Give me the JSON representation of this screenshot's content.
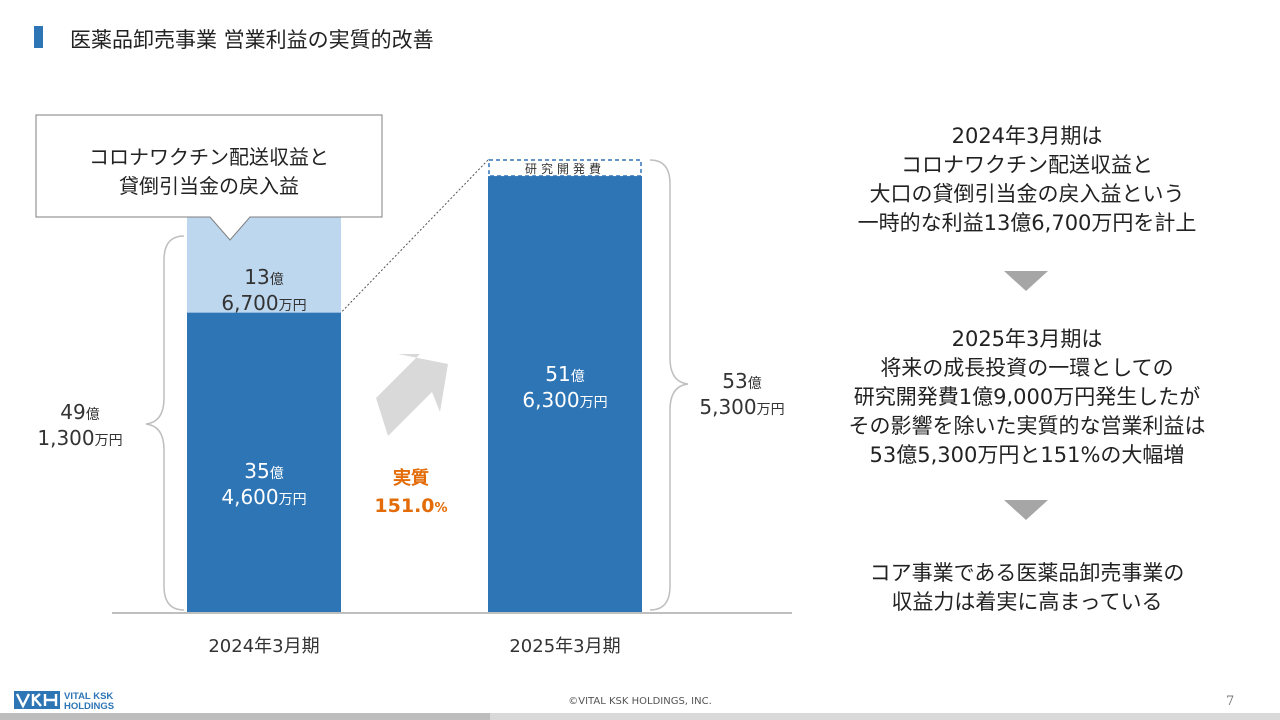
{
  "page": {
    "title": "医薬品卸売事業 営業利益の実質的改善",
    "copyright": "©VITAL KSK HOLDINGS, INC.",
    "page_number": "7",
    "logo": {
      "line1": "VITAL KSK",
      "line2": "HOLDINGS"
    }
  },
  "colors": {
    "bar_dark": "#2e75b6",
    "bar_light": "#bdd7ee",
    "accent_orange": "#e36c09",
    "arrow_gray": "#d9d9d9",
    "triangle_gray": "#a6a6a6"
  },
  "chart_data": {
    "type": "bar",
    "stacked": true,
    "unit": "億円",
    "categories": [
      "2024年3月期",
      "2025年3月期"
    ],
    "series": [
      {
        "values": [
          35.46,
          51.63
        ]
      },
      {
        "values": [
          13.67,
          0
        ]
      },
      {
        "values": [
          0,
          1.9
        ]
      }
    ],
    "ylim": [
      0,
      54
    ],
    "grid": false,
    "callout": {
      "lines": [
        "コロナワクチン配送収益と",
        "貸倒引当金の戻入益"
      ]
    },
    "rd_label": "研究開発費",
    "labels": {
      "seg2024_light": {
        "top": "13",
        "top_unit": "億",
        "bottom": "6,700",
        "bottom_unit": "万円"
      },
      "seg2024_dark": {
        "top": "35",
        "top_unit": "億",
        "bottom": "4,600",
        "bottom_unit": "万円"
      },
      "seg2025_dark": {
        "top": "51",
        "top_unit": "億",
        "bottom": "6,300",
        "bottom_unit": "万円"
      },
      "total2024": {
        "top": "49",
        "top_unit": "億",
        "bottom": "1,300",
        "bottom_unit": "万円"
      },
      "total2025": {
        "top": "53",
        "top_unit": "億",
        "bottom": "5,300",
        "bottom_unit": "万円"
      }
    },
    "growth": {
      "label": "実質",
      "value": "151.0",
      "unit": "%"
    }
  },
  "right_panel": {
    "block1": [
      "2024年3月期は",
      "コロナワクチン配送収益と",
      "大口の貸倒引当金の戻入益という",
      "一時的な利益13億6,700万円を計上"
    ],
    "block2": [
      "2025年3月期は",
      "将来の成長投資の一環としての",
      "研究開発費1億9,000万円発生したが",
      "その影響を除いた実質的な営業利益は",
      "53億5,300万円と151%の大幅増"
    ],
    "block3": [
      "コア事業である医薬品卸売事業の",
      "収益力は着実に高まっている"
    ]
  }
}
